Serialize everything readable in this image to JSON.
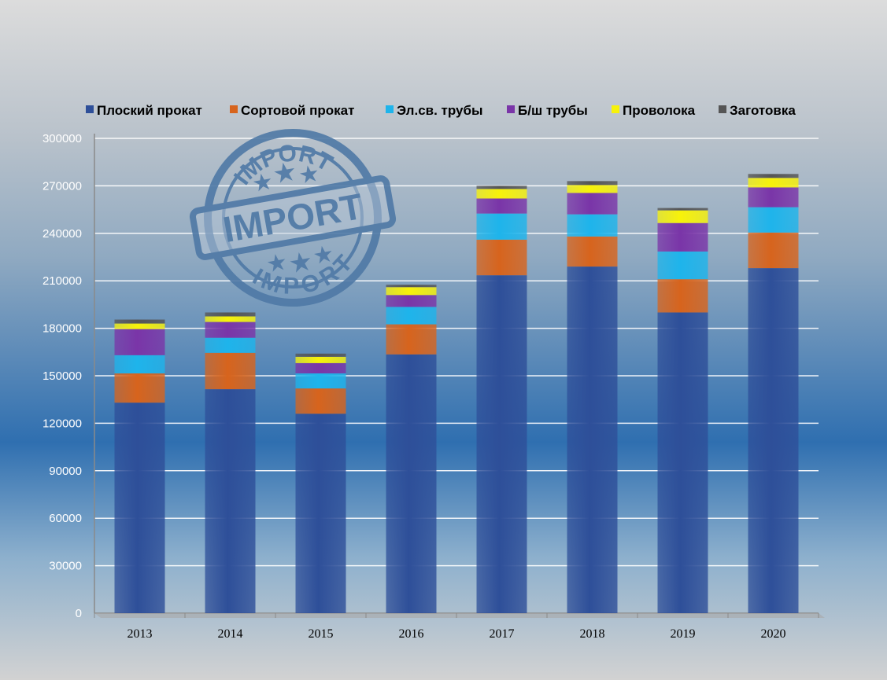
{
  "stamp": {
    "main": "IMPORT",
    "top": "IMPORT",
    "bottom": "IMPORT"
  },
  "chart_data": {
    "type": "bar",
    "stacked": true,
    "categories": [
      "2013",
      "2014",
      "2015",
      "2016",
      "2017",
      "2018",
      "2019",
      "2020"
    ],
    "ylim": [
      0,
      300000
    ],
    "yticks": [
      "0",
      "30000",
      "60000",
      "90000",
      "120000",
      "150000",
      "180000",
      "210000",
      "240000",
      "270000",
      "300000"
    ],
    "grid": true,
    "legend_position": "top",
    "series": [
      {
        "name": "Плоский прокат",
        "color": "#2e4f99",
        "values": [
          133000,
          141500,
          126000,
          163500,
          213500,
          219000,
          190000,
          218000
        ]
      },
      {
        "name": "Сортовой прокат",
        "color": "#d7641d",
        "values": [
          18500,
          23000,
          16000,
          19000,
          22500,
          19000,
          21000,
          22500
        ]
      },
      {
        "name": "Эл.св. трубы",
        "color": "#1eb4eb",
        "values": [
          11500,
          9500,
          9500,
          11000,
          16500,
          14000,
          17500,
          16000
        ]
      },
      {
        "name": "Б/ш трубы",
        "color": "#7a35a8",
        "values": [
          16500,
          10000,
          6500,
          7500,
          9500,
          13500,
          18000,
          12500
        ]
      },
      {
        "name": "Проволока",
        "color": "#f7f20a",
        "values": [
          3500,
          3500,
          4000,
          5000,
          6000,
          5000,
          8000,
          6000
        ]
      },
      {
        "name": "Заготовка",
        "color": "#555555",
        "values": [
          2500,
          2500,
          2000,
          1500,
          2000,
          2500,
          1500,
          2500
        ]
      }
    ]
  }
}
